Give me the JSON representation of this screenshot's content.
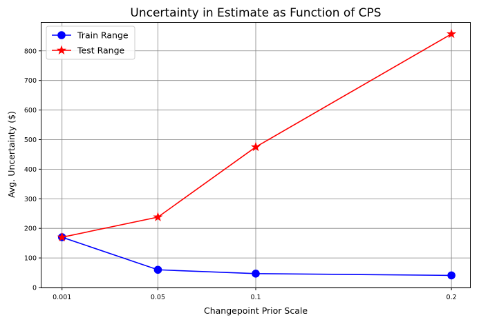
{
  "chart_data": {
    "type": "line",
    "title": "Uncertainty in Estimate as Function of CPS",
    "xlabel": "Changepoint Prior Scale",
    "ylabel": "Avg. Uncertainty ($)",
    "x": [
      0.001,
      0.05,
      0.1,
      0.2
    ],
    "x_tick_labels": [
      "0.001",
      "0.05",
      "0.1",
      "0.2"
    ],
    "xlim": [
      -0.0095,
      0.2095
    ],
    "ylim": [
      0,
      895
    ],
    "y_ticks": [
      0,
      100,
      200,
      300,
      400,
      500,
      600,
      700,
      800
    ],
    "y_tick_labels": [
      "0",
      "100",
      "200",
      "300",
      "400",
      "500",
      "600",
      "700",
      "800"
    ],
    "grid": true,
    "legend_position": "top-left",
    "series": [
      {
        "name": "Train Range",
        "values": [
          170,
          60,
          47,
          41
        ],
        "color": "#0000ff",
        "marker": "circle"
      },
      {
        "name": "Test Range",
        "values": [
          170,
          238,
          475,
          857
        ],
        "color": "#ff0000",
        "marker": "star"
      }
    ]
  }
}
